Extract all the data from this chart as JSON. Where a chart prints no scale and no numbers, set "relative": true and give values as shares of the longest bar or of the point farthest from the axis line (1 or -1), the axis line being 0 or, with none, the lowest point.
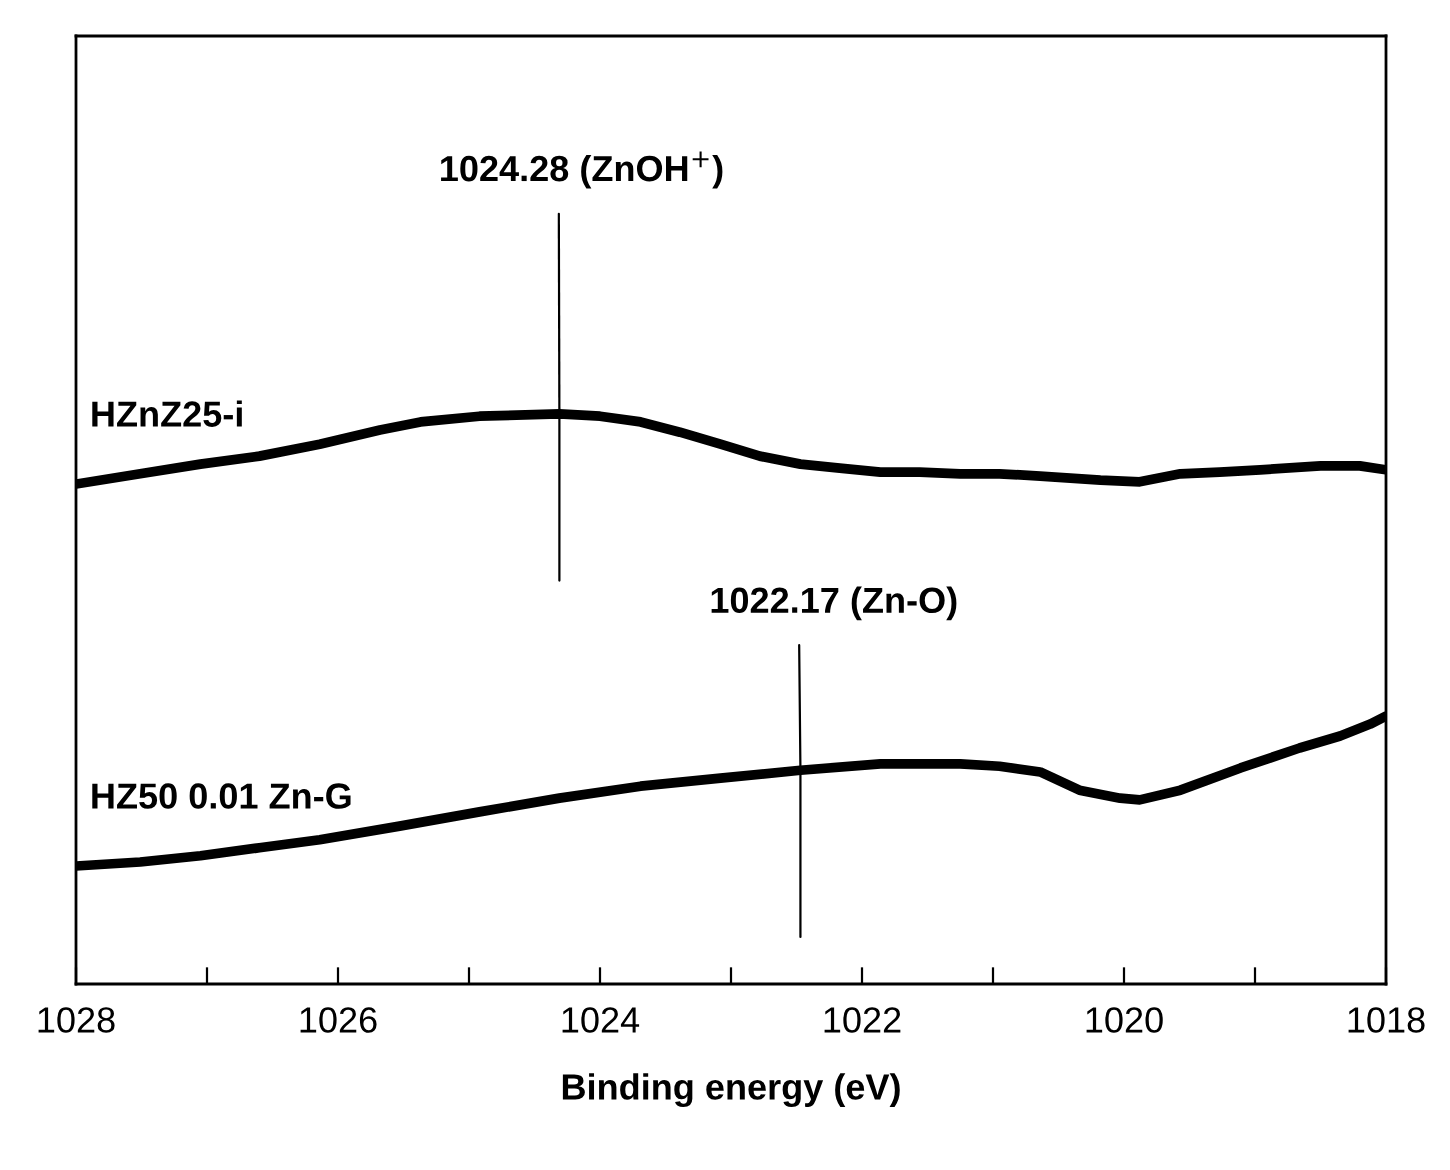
{
  "chart_data": {
    "type": "line",
    "relative": true,
    "xlabel": "Binding energy (eV)",
    "xlim": [
      1028,
      1018
    ],
    "xticks": [
      1028,
      {
        "value": 1027,
        "label": null
      },
      1026,
      {
        "value": 1025,
        "label": null
      },
      1024,
      {
        "value": 1023,
        "label": null
      },
      1022,
      {
        "value": 1021,
        "label": null
      },
      1020,
      {
        "value": 1019,
        "label": null
      },
      1018
    ],
    "tick_labels": "x",
    "marker": "none",
    "line_style": "solid",
    "annotations": [
      {
        "text": "1024.28 (ZnOH$^{+}$)",
        "x": 1024.31,
        "y": 1.0
      },
      {
        "text": "1022.17 (Zn-O)",
        "x": 1022.47,
        "y": 0.375
      }
    ],
    "series": [
      {
        "name": "HZnZ25-i",
        "color": "#000000",
        "x": [
          1028.0,
          1027.51,
          1027.05,
          1026.6,
          1026.14,
          1025.68,
          1025.37,
          1024.92,
          1024.31,
          1024.0,
          1023.69,
          1023.39,
          1023.08,
          1022.78,
          1022.47,
          1022.17,
          1021.86,
          1021.56,
          1021.25,
          1020.95,
          1020.64,
          1020.18,
          1019.88,
          1019.57,
          1019.27,
          1018.96,
          1018.5,
          1018.2,
          1018.0
        ],
        "values": [
          0.877,
          0.895,
          0.912,
          0.926,
          0.947,
          0.972,
          0.986,
          0.996,
          1.0,
          0.996,
          0.986,
          0.968,
          0.947,
          0.926,
          0.912,
          0.905,
          0.898,
          0.898,
          0.895,
          0.895,
          0.891,
          0.884,
          0.881,
          0.895,
          0.898,
          0.902,
          0.909,
          0.909,
          0.902
        ]
      },
      {
        "name": "HZ50 0.01 Zn-G",
        "color": "#000000",
        "x": [
          1028.0,
          1027.51,
          1027.05,
          1026.6,
          1026.14,
          1025.53,
          1024.92,
          1024.31,
          1023.69,
          1023.08,
          1022.47,
          1021.86,
          1021.25,
          1020.95,
          1020.64,
          1020.34,
          1020.03,
          1019.88,
          1019.57,
          1019.11,
          1018.66,
          1018.35,
          1018.12,
          1018.0
        ],
        "values": [
          0.207,
          0.214,
          0.225,
          0.239,
          0.253,
          0.277,
          0.302,
          0.326,
          0.347,
          0.361,
          0.375,
          0.386,
          0.386,
          0.382,
          0.372,
          0.34,
          0.326,
          0.323,
          0.34,
          0.379,
          0.414,
          0.435,
          0.456,
          0.47
        ]
      }
    ]
  }
}
